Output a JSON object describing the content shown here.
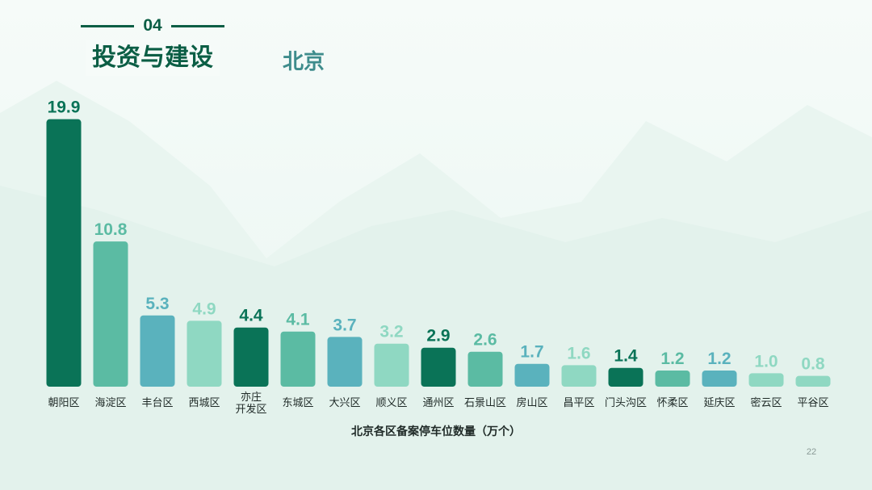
{
  "section": {
    "number": "04",
    "title": "投资与建设",
    "region": "北京"
  },
  "page_number": "22",
  "chart_data": {
    "type": "bar",
    "title": "",
    "xlabel": "北京各区备案停车位数量（万个）",
    "ylabel": "",
    "ylim": [
      0,
      20
    ],
    "grid": false,
    "categories": [
      "朝阳区",
      "海淀区",
      "丰台区",
      "西城区",
      "亦庄\n开发区",
      "东城区",
      "大兴区",
      "顺义区",
      "通州区",
      "石景山区",
      "房山区",
      "昌平区",
      "门头沟区",
      "怀柔区",
      "延庆区",
      "密云区",
      "平谷区"
    ],
    "values": [
      19.9,
      10.8,
      5.3,
      4.9,
      4.4,
      4.1,
      3.7,
      3.2,
      2.9,
      2.6,
      1.7,
      1.6,
      1.4,
      1.2,
      1.2,
      1.0,
      0.8
    ],
    "value_labels": [
      "19.9",
      "10.8",
      "5.3",
      "4.9",
      "4.4",
      "4.1",
      "3.7",
      "3.2",
      "2.9",
      "2.6",
      "1.7",
      "1.6",
      "1.4",
      "1.2",
      "1.2",
      "1.0",
      "0.8"
    ],
    "colors": [
      "#0a7357",
      "#5bbba3",
      "#5ab2bd",
      "#8fd8c2",
      "#0a7357",
      "#5bbba3",
      "#5ab2bd",
      "#8fd8c2",
      "#0a7357",
      "#5bbba3",
      "#5ab2bd",
      "#8fd8c2",
      "#0a7357",
      "#5bbba3",
      "#5ab2bd",
      "#8fd8c2",
      "#8fd8c2"
    ]
  }
}
